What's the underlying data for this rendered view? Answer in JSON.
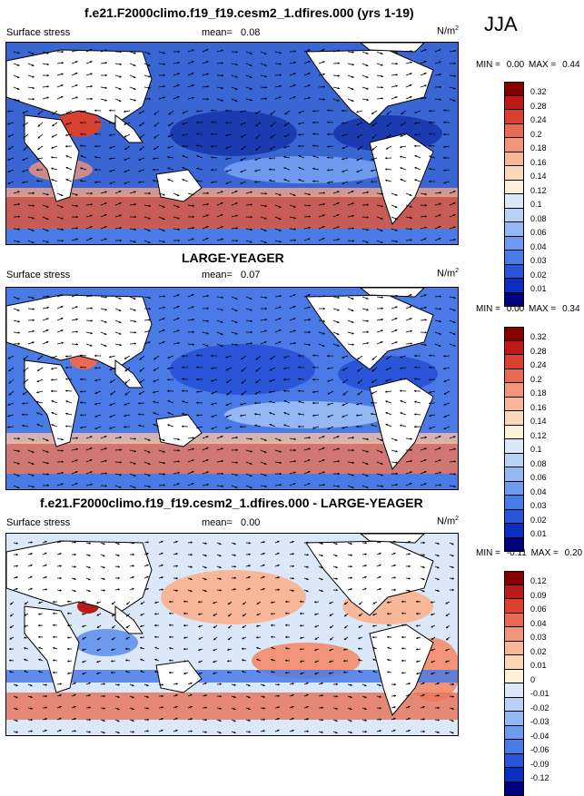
{
  "season": "JJA",
  "colors": {
    "positive_scale": [
      "#000080",
      "#0b2fc0",
      "#2a55d9",
      "#4a7ae6",
      "#6d99ef",
      "#94b8f3",
      "#b8d2f6",
      "#dbe8fa",
      "#fdf0d8",
      "#fcd8b8",
      "#f7b798",
      "#f19479",
      "#e86a55",
      "#d84030",
      "#bb1a18",
      "#850000"
    ],
    "land": "#ffffff",
    "arrow": "#000000"
  },
  "panels": [
    {
      "id": "model",
      "title": "f.e21.F2000climo.f19_f19.cesm2_1.dfires.000 (yrs 1-19)",
      "variable": "Surface stress",
      "mean_label": "mean=",
      "mean_value": "0.08",
      "units": "N/m",
      "units_exp": "2",
      "min_label": "MIN =",
      "min_value": "0.00",
      "max_label": "MAX =",
      "max_value": "0.44",
      "colorbar_labels": [
        "0.32",
        "0.28",
        "0.24",
        "0.2",
        "0.18",
        "0.16",
        "0.14",
        "0.12",
        "0.1",
        "0.08",
        "0.06",
        "0.04",
        "0.03",
        "0.02",
        "0.01"
      ]
    },
    {
      "id": "obs",
      "title": "LARGE-YEAGER",
      "variable": "Surface stress",
      "mean_label": "mean=",
      "mean_value": "0.07",
      "units": "N/m",
      "units_exp": "2",
      "min_label": "MIN =",
      "min_value": "0.00",
      "max_label": "MAX =",
      "max_value": "0.34",
      "colorbar_labels": [
        "0.32",
        "0.28",
        "0.24",
        "0.2",
        "0.18",
        "0.16",
        "0.14",
        "0.12",
        "0.1",
        "0.08",
        "0.06",
        "0.04",
        "0.03",
        "0.02",
        "0.01"
      ]
    },
    {
      "id": "diff",
      "title": "f.e21.F2000climo.f19_f19.cesm2_1.dfires.000 - LARGE-YEAGER",
      "variable": "Surface stress",
      "mean_label": "mean=",
      "mean_value": "0.00",
      "units": "N/m",
      "units_exp": "2",
      "min_label": "MIN =",
      "min_value": "-0.11",
      "max_label": "MAX =",
      "max_value": "0.20",
      "colorbar_labels": [
        "0.12",
        "0.09",
        "0.06",
        "0.04",
        "0.03",
        "0.02",
        "0.01",
        "0",
        "-0.01",
        "-0.02",
        "-0.03",
        "-0.04",
        "-0.06",
        "-0.09",
        "-0.12"
      ]
    }
  ]
}
